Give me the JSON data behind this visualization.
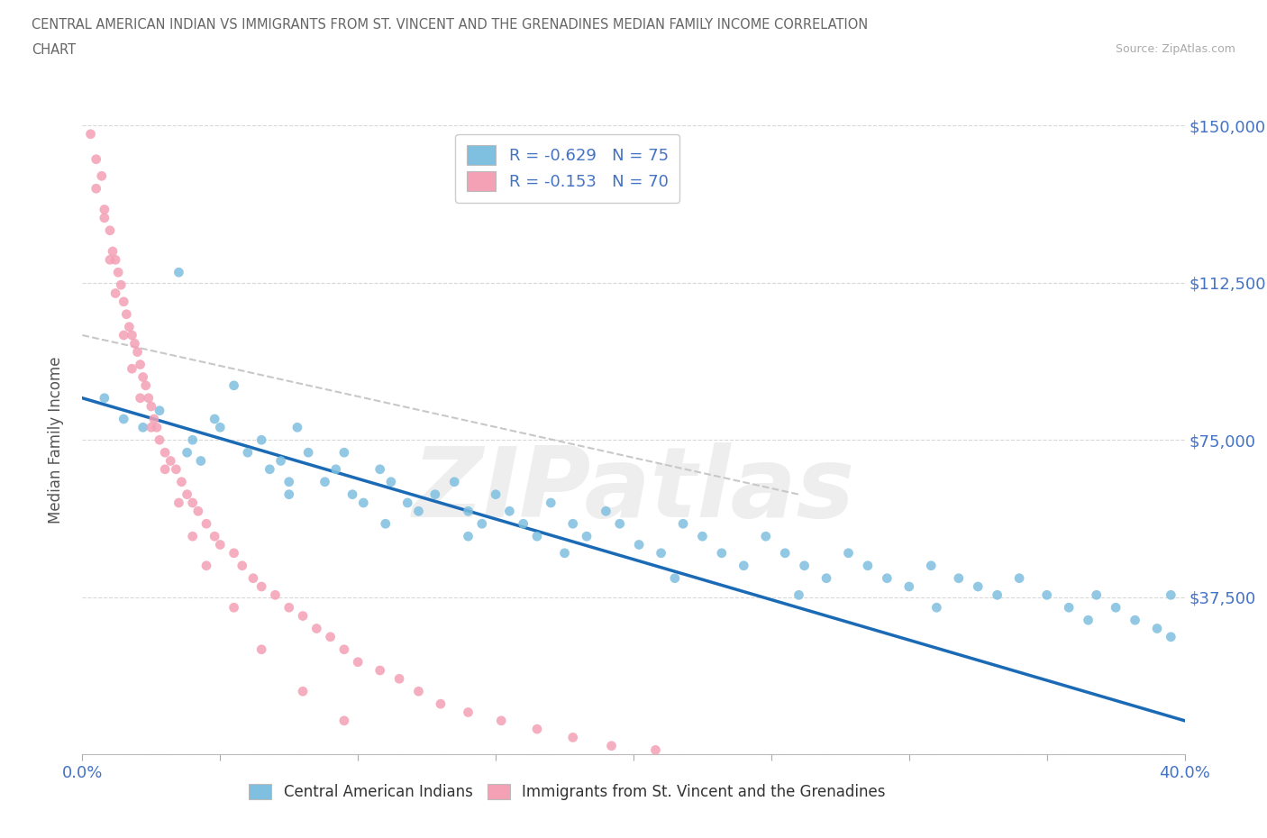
{
  "title_line1": "CENTRAL AMERICAN INDIAN VS IMMIGRANTS FROM ST. VINCENT AND THE GRENADINES MEDIAN FAMILY INCOME CORRELATION",
  "title_line2": "CHART",
  "source_text": "Source: ZipAtlas.com",
  "ylabel": "Median Family Income",
  "xlim": [
    0.0,
    0.4
  ],
  "ylim": [
    0,
    150000
  ],
  "xtick_positions": [
    0.0,
    0.05,
    0.1,
    0.15,
    0.2,
    0.25,
    0.3,
    0.35,
    0.4
  ],
  "ytick_positions": [
    0,
    37500,
    75000,
    112500,
    150000
  ],
  "yticklabels_right": [
    "",
    "$37,500",
    "$75,000",
    "$112,500",
    "$150,000"
  ],
  "blue_color": "#7fbfdf",
  "pink_color": "#f4a0b5",
  "blue_line_color": "#1a6ab5",
  "pink_line_color": "#c8c8c8",
  "watermark_text": "ZIPatlas",
  "legend_r1": "-0.629",
  "legend_n1": "75",
  "legend_r2": "-0.153",
  "legend_n2": "70",
  "blue_series_label": "Central American Indians",
  "pink_series_label": "Immigrants from St. Vincent and the Grenadines",
  "background_color": "#ffffff",
  "grid_color": "#d8d8d8",
  "title_color": "#666666",
  "axis_color": "#4472c4",
  "blue_x": [
    0.008,
    0.015,
    0.022,
    0.028,
    0.035,
    0.038,
    0.04,
    0.043,
    0.048,
    0.055,
    0.06,
    0.065,
    0.068,
    0.072,
    0.075,
    0.078,
    0.082,
    0.088,
    0.092,
    0.095,
    0.098,
    0.102,
    0.108,
    0.112,
    0.118,
    0.122,
    0.128,
    0.135,
    0.14,
    0.145,
    0.15,
    0.155,
    0.16,
    0.165,
    0.17,
    0.178,
    0.183,
    0.19,
    0.195,
    0.202,
    0.21,
    0.218,
    0.225,
    0.232,
    0.24,
    0.248,
    0.255,
    0.262,
    0.27,
    0.278,
    0.285,
    0.292,
    0.3,
    0.308,
    0.318,
    0.325,
    0.332,
    0.34,
    0.35,
    0.358,
    0.368,
    0.375,
    0.382,
    0.39,
    0.395,
    0.05,
    0.075,
    0.11,
    0.14,
    0.175,
    0.215,
    0.26,
    0.31,
    0.365,
    0.395
  ],
  "blue_y": [
    85000,
    80000,
    78000,
    82000,
    115000,
    72000,
    75000,
    70000,
    80000,
    88000,
    72000,
    75000,
    68000,
    70000,
    65000,
    78000,
    72000,
    65000,
    68000,
    72000,
    62000,
    60000,
    68000,
    65000,
    60000,
    58000,
    62000,
    65000,
    58000,
    55000,
    62000,
    58000,
    55000,
    52000,
    60000,
    55000,
    52000,
    58000,
    55000,
    50000,
    48000,
    55000,
    52000,
    48000,
    45000,
    52000,
    48000,
    45000,
    42000,
    48000,
    45000,
    42000,
    40000,
    45000,
    42000,
    40000,
    38000,
    42000,
    38000,
    35000,
    38000,
    35000,
    32000,
    30000,
    28000,
    78000,
    62000,
    55000,
    52000,
    48000,
    42000,
    38000,
    35000,
    32000,
    38000
  ],
  "pink_x": [
    0.003,
    0.005,
    0.007,
    0.008,
    0.01,
    0.011,
    0.012,
    0.013,
    0.014,
    0.015,
    0.016,
    0.017,
    0.018,
    0.019,
    0.02,
    0.021,
    0.022,
    0.023,
    0.024,
    0.025,
    0.026,
    0.027,
    0.028,
    0.03,
    0.032,
    0.034,
    0.036,
    0.038,
    0.04,
    0.042,
    0.045,
    0.048,
    0.05,
    0.055,
    0.058,
    0.062,
    0.065,
    0.07,
    0.075,
    0.08,
    0.085,
    0.09,
    0.095,
    0.1,
    0.108,
    0.115,
    0.122,
    0.13,
    0.14,
    0.152,
    0.165,
    0.178,
    0.192,
    0.208,
    0.005,
    0.008,
    0.01,
    0.012,
    0.015,
    0.018,
    0.021,
    0.025,
    0.03,
    0.035,
    0.04,
    0.045,
    0.055,
    0.065,
    0.08,
    0.095
  ],
  "pink_y": [
    148000,
    142000,
    138000,
    130000,
    125000,
    120000,
    118000,
    115000,
    112000,
    108000,
    105000,
    102000,
    100000,
    98000,
    96000,
    93000,
    90000,
    88000,
    85000,
    83000,
    80000,
    78000,
    75000,
    72000,
    70000,
    68000,
    65000,
    62000,
    60000,
    58000,
    55000,
    52000,
    50000,
    48000,
    45000,
    42000,
    40000,
    38000,
    35000,
    33000,
    30000,
    28000,
    25000,
    22000,
    20000,
    18000,
    15000,
    12000,
    10000,
    8000,
    6000,
    4000,
    2000,
    1000,
    135000,
    128000,
    118000,
    110000,
    100000,
    92000,
    85000,
    78000,
    68000,
    60000,
    52000,
    45000,
    35000,
    25000,
    15000,
    8000
  ]
}
